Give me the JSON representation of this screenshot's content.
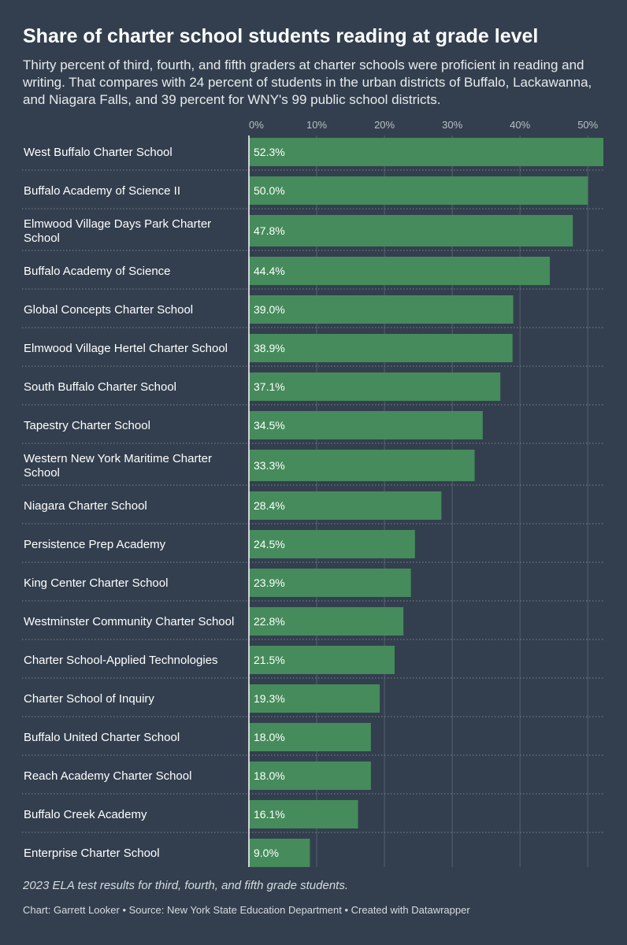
{
  "header": {
    "title": "Share of charter school students reading at grade level",
    "subtitle": "Thirty percent of third, fourth, and fifth graders at charter schools were proficient in reading and writing. That compares with 24 percent of students in the urban districts of Buffalo, Lackawanna, and Niagara Falls, and 39 percent for WNY's 99 public school districts."
  },
  "footer": {
    "note": "2023 ELA test results for third, fourth, and fifth grade students.",
    "credits": "Chart: Garrett Looker • Source: New York State Education Department • Created with Datawrapper"
  },
  "colors": {
    "background": "#333f4e",
    "bar": "#468b5c"
  },
  "chart_data": {
    "type": "bar",
    "orientation": "horizontal",
    "categories": [
      "West Buffalo Charter School",
      "Buffalo Academy of Science II",
      "Elmwood Village Days Park Charter School",
      "Buffalo Academy of Science",
      "Global Concepts Charter School",
      "Elmwood Village Hertel Charter School",
      "South Buffalo Charter School",
      "Tapestry Charter School",
      "Western New York Maritime Charter School",
      "Niagara Charter School",
      "Persistence Prep Academy",
      "King Center Charter School",
      "Westminster Community Charter School",
      "Charter School-Applied Technologies",
      "Charter School of Inquiry",
      "Buffalo United Charter School",
      "Reach Academy Charter School",
      "Buffalo Creek Academy",
      "Enterprise Charter School"
    ],
    "values": [
      52.3,
      50.0,
      47.8,
      44.4,
      39.0,
      38.9,
      37.1,
      34.5,
      33.3,
      28.4,
      24.5,
      23.9,
      22.8,
      21.5,
      19.3,
      18.0,
      18.0,
      16.1,
      9.0
    ],
    "value_labels": [
      "52.3%",
      "50.0%",
      "47.8%",
      "44.4%",
      "39.0%",
      "38.9%",
      "37.1%",
      "34.5%",
      "33.3%",
      "28.4%",
      "24.5%",
      "23.9%",
      "22.8%",
      "21.5%",
      "19.3%",
      "18.0%",
      "18.0%",
      "16.1%",
      "9.0%"
    ],
    "xlim": [
      0,
      52.3
    ],
    "ticks": [
      0,
      10,
      20,
      30,
      40,
      50
    ],
    "tick_labels": [
      "0%",
      "10%",
      "20%",
      "30%",
      "40%",
      "50%"
    ],
    "grid": true,
    "legend": "none"
  }
}
